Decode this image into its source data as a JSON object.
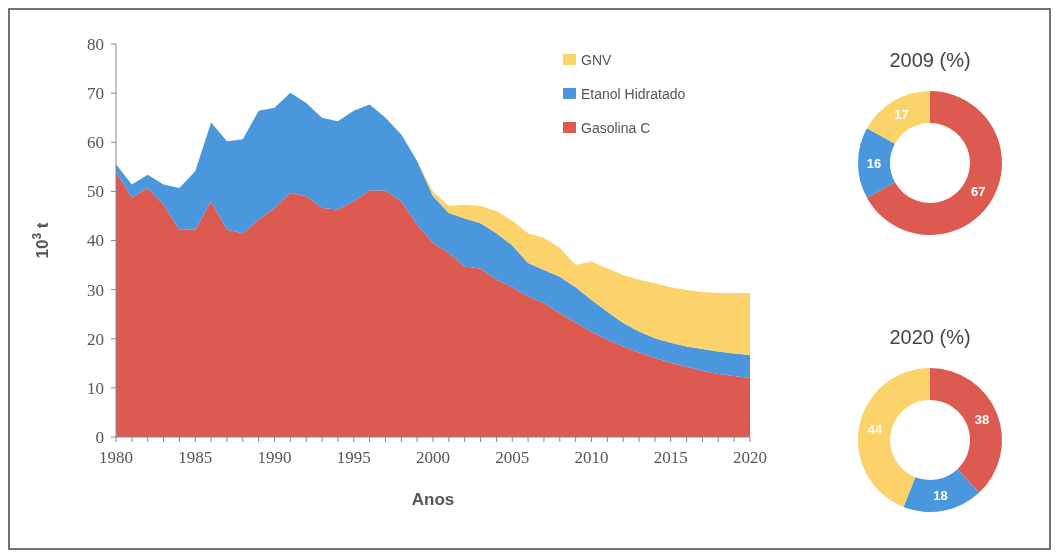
{
  "chart_data": [
    {
      "type": "area",
      "stacked": true,
      "xlabel": "Anos",
      "ylabel": "10$^{3}$ t",
      "legend": "top right",
      "x": [
        1980,
        1981,
        1982,
        1983,
        1984,
        1985,
        1986,
        1987,
        1988,
        1989,
        1990,
        1991,
        1992,
        1993,
        1994,
        1995,
        1996,
        1997,
        1998,
        1999,
        2000,
        2001,
        2002,
        2003,
        2004,
        2005,
        2006,
        2007,
        2008,
        2009,
        2010,
        2011,
        2012,
        2013,
        2014,
        2015,
        2016,
        2017,
        2018,
        2019,
        2020
      ],
      "xlim": [
        1980,
        2020
      ],
      "xticks": [
        1980,
        1985,
        1990,
        1995,
        2000,
        2005,
        2010,
        2015,
        2020
      ],
      "ylim": [
        0,
        80
      ],
      "yticks": [
        0,
        10,
        20,
        30,
        40,
        50,
        60,
        70,
        80
      ],
      "series": [
        {
          "name": "Gasolina C",
          "color": "#dc5a50",
          "values": [
            54,
            48.7,
            50.7,
            47.3,
            42.2,
            42.2,
            48,
            42.2,
            41.5,
            44.2,
            46.6,
            49.7,
            49,
            46.6,
            46.3,
            48,
            50.2,
            50.2,
            48,
            43.2,
            39.5,
            37.4,
            34.7,
            34.3,
            32,
            30.5,
            28.6,
            27.3,
            25.2,
            23.3,
            21.4,
            19.8,
            18.4,
            17.2,
            16.1,
            15.1,
            14.3,
            13.5,
            12.8,
            12.4,
            12
          ]
        },
        {
          "name": "Etanol Hidratado",
          "color": "#4a97dd",
          "values": [
            1.5,
            2.7,
            2.7,
            4.1,
            8.5,
            11.9,
            16,
            18,
            19.1,
            22.2,
            20.4,
            20.4,
            19,
            18.4,
            18,
            18.4,
            17.5,
            14.8,
            13.6,
            13,
            9.5,
            8.2,
            9.8,
            9.2,
            9.5,
            8.5,
            6.8,
            6.7,
            7.4,
            7.2,
            6.5,
            5.7,
            4.8,
            4.3,
            4,
            4.1,
            4.1,
            4.4,
            4.6,
            4.6,
            4.7
          ]
        },
        {
          "name": "GNV",
          "color": "#fcd26a",
          "values": [
            0,
            0,
            0,
            0,
            0,
            0,
            0,
            0,
            0,
            0,
            0,
            0,
            0,
            0,
            0,
            0,
            0,
            0,
            0,
            0,
            1,
            1.4,
            2.8,
            3.5,
            4.5,
            5,
            6.1,
            6.5,
            5.9,
            4.5,
            7.8,
            8.8,
            9.8,
            10.5,
            11.2,
            11.3,
            11.5,
            11.6,
            11.9,
            12.3,
            12.6
          ]
        }
      ]
    },
    {
      "type": "donut",
      "title": "2009 (%)",
      "categories": [
        null,
        null,
        null
      ],
      "values": [
        67,
        16,
        17
      ],
      "colors": [
        "#dc5a50",
        "#4a97dd",
        "#fcd26a"
      ],
      "data_labels": true
    },
    {
      "type": "donut",
      "title": "2020 (%)",
      "categories": [
        null,
        null,
        null
      ],
      "values": [
        38,
        18,
        44
      ],
      "colors": [
        "#dc5a50",
        "#4a97dd",
        "#fcd26a"
      ],
      "data_labels": true
    }
  ]
}
